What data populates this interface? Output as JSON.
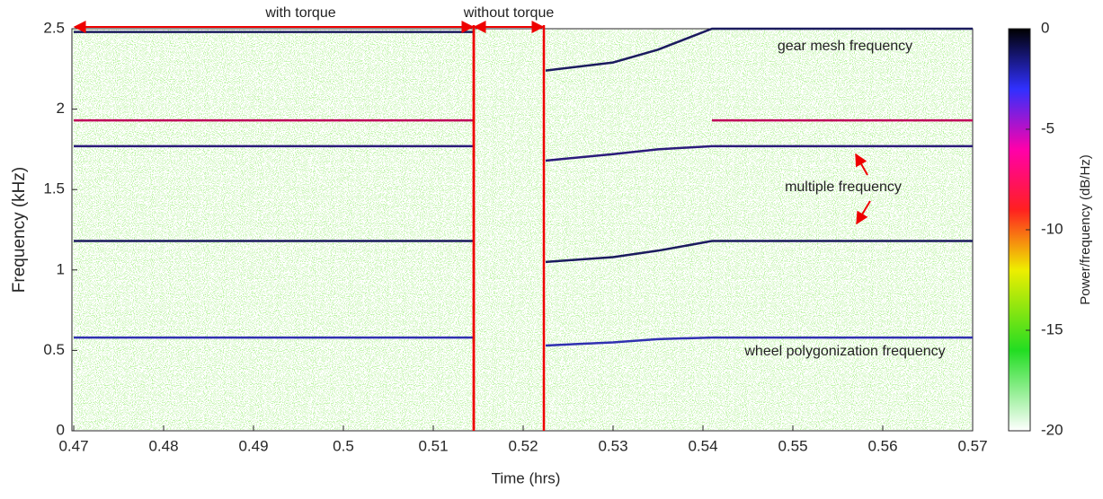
{
  "chart_data": {
    "type": "spectrogram",
    "xlabel": "Time (hrs)",
    "ylabel": "Frequency (kHz)",
    "xlim": [
      0.47,
      0.57
    ],
    "xticks": [
      0.47,
      0.48,
      0.49,
      0.5,
      0.51,
      0.52,
      0.53,
      0.54,
      0.55,
      0.56,
      0.57
    ],
    "ylim": [
      0,
      2.5
    ],
    "yticks": [
      0,
      0.5,
      1,
      1.5,
      2,
      2.5
    ],
    "x": [
      0.47,
      0.5145,
      0.518,
      0.5225,
      0.53,
      0.535,
      0.541,
      0.57
    ],
    "series": [
      {
        "color": "#1b1b5e",
        "values": [
          2.48,
          2.48,
          null,
          2.24,
          2.29,
          2.37,
          2.5,
          2.5
        ]
      },
      {
        "color": "#c0005a",
        "values": [
          1.93,
          1.93,
          null,
          null,
          null,
          null,
          1.93,
          1.93
        ]
      },
      {
        "color": "#2a1a7a",
        "values": [
          1.77,
          1.77,
          null,
          1.68,
          1.72,
          1.75,
          1.77,
          1.77
        ]
      },
      {
        "color": "#1b1b5e",
        "values": [
          1.18,
          1.18,
          null,
          1.05,
          1.08,
          1.12,
          1.18,
          1.18
        ]
      },
      {
        "color": "#3030b0",
        "values": [
          0.58,
          0.58,
          null,
          0.53,
          0.55,
          0.57,
          0.58,
          0.58
        ]
      }
    ],
    "segments": [
      {
        "label": "with torque",
        "x": [
          0.47,
          0.5145
        ]
      },
      {
        "label": "without torque",
        "x": [
          0.5145,
          0.5223
        ]
      }
    ],
    "annotations": [
      "gear mesh frequency",
      "multiple frequency",
      "wheel polygonization frequency"
    ],
    "colorbar": {
      "label": "Power/frequency (dB/Hz)",
      "clim": [
        -20,
        0
      ],
      "ticks": [
        0,
        -5,
        -10,
        -15,
        -20
      ]
    }
  }
}
